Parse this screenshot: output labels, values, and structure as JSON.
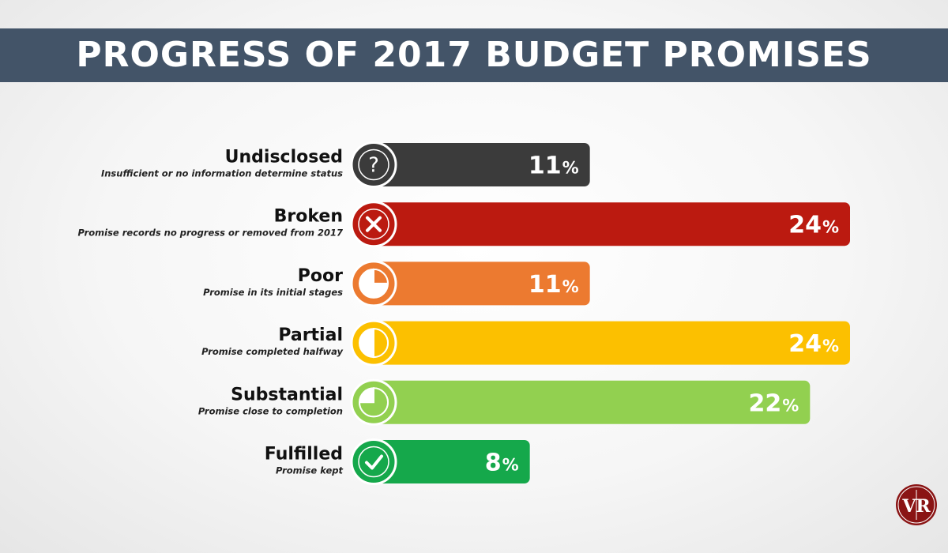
{
  "title": "PROGRESS OF 2017 BUDGET PROMISES",
  "colors": {
    "header": "#435468",
    "icon_ring": "#ffffff"
  },
  "logo_text": "VR",
  "chart_data": {
    "type": "bar",
    "orientation": "horizontal",
    "unit": "%",
    "categories": [
      "Undisclosed",
      "Broken",
      "Poor",
      "Partial",
      "Substantial",
      "Fulfilled"
    ],
    "descriptions": [
      "Insufficient or no information determine status",
      "Promise records no progress or removed from 2017",
      "Promise in its initial stages",
      "Promise completed halfway",
      "Promise close to completion",
      "Promise kept"
    ],
    "values": [
      11,
      24,
      11,
      24,
      22,
      8
    ],
    "value_labels": [
      "11",
      "24",
      "11",
      "24",
      "22",
      "8"
    ],
    "percent_sign": "%",
    "colors": [
      "#3b3b3b",
      "#bb1a10",
      "#ec7a30",
      "#fcc000",
      "#92d050",
      "#15a84b"
    ],
    "icons": [
      "question-icon",
      "x-icon",
      "quarter-progress-icon",
      "half-progress-icon",
      "three-quarter-progress-icon",
      "check-icon"
    ],
    "xlim": [
      0,
      24
    ],
    "grid": false,
    "legend": "none"
  }
}
